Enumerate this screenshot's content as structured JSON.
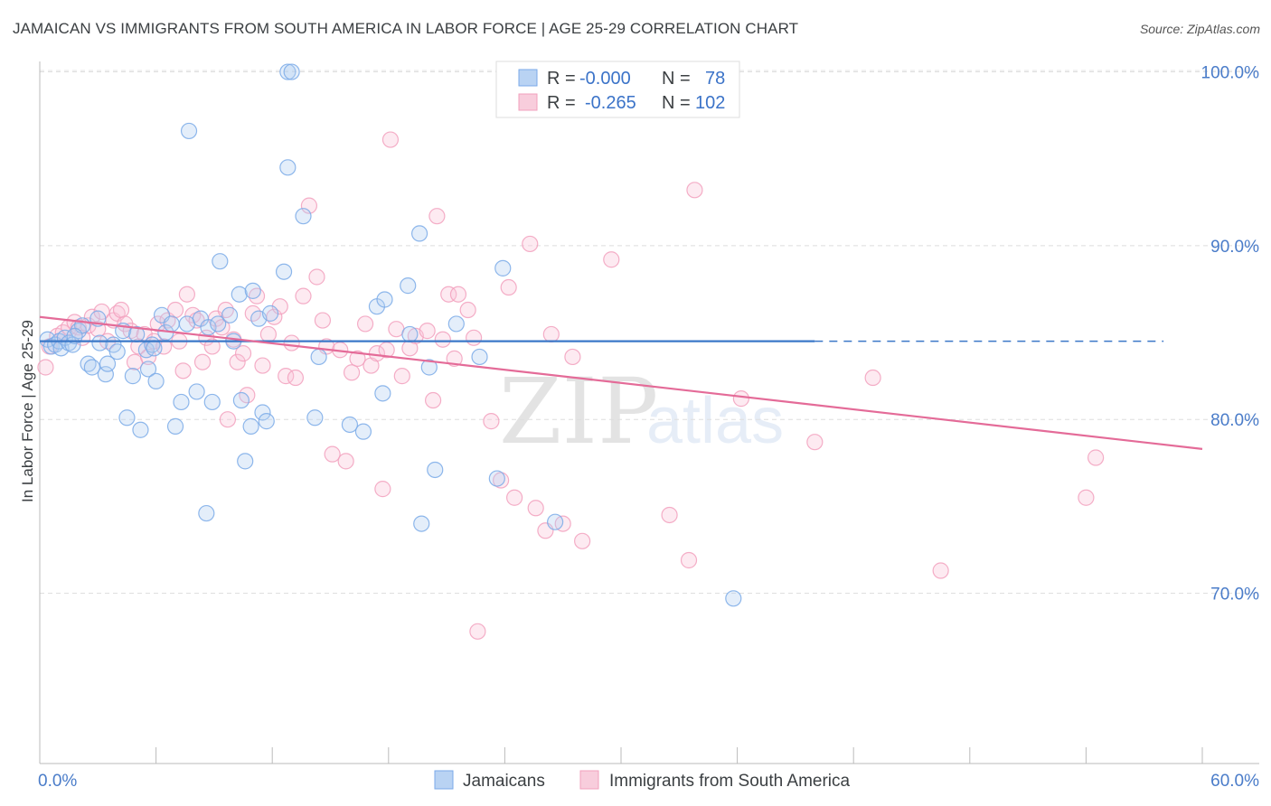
{
  "title": "JAMAICAN VS IMMIGRANTS FROM SOUTH AMERICA IN LABOR FORCE | AGE 25-29 CORRELATION CHART",
  "source": "Source: ZipAtlas.com",
  "watermark": {
    "zip": "ZIP",
    "atlas": "atlas"
  },
  "chart_data": {
    "type": "scatter",
    "title": "JAMAICAN VS IMMIGRANTS FROM SOUTH AMERICA IN LABOR FORCE | AGE 25-29 CORRELATION CHART",
    "xlabel": "",
    "ylabel": "In Labor Force | Age 25-29",
    "xlim": [
      0,
      60
    ],
    "ylim": [
      60.2,
      100.6
    ],
    "x_tick_labels": [
      "0.0%",
      "60.0%"
    ],
    "y_ticks": [
      70,
      80,
      90,
      100
    ],
    "y_tick_labels": [
      "70.0%",
      "80.0%",
      "90.0%",
      "100.0%"
    ],
    "grid": true,
    "legend": {
      "position": "top-center",
      "entries": [
        {
          "r_label": "R =",
          "r_value": "-0.000",
          "n_label": "N =",
          "n_value": "78"
        },
        {
          "r_label": "R =",
          "r_value": "-0.265",
          "n_label": "N =",
          "n_value": "102"
        }
      ]
    },
    "series": [
      {
        "name": "Jamaicans",
        "color": "#7aaae8",
        "line_color": "#3b78c8",
        "trend": {
          "x0": 0,
          "y0": 84.5,
          "x1": 40,
          "y1": 84.5,
          "dash_to": 58,
          "dash_y": 84.5
        },
        "points": [
          [
            0.4,
            84.6
          ],
          [
            0.6,
            84.2
          ],
          [
            0.8,
            84.3
          ],
          [
            1.0,
            84.5
          ],
          [
            1.1,
            84.1
          ],
          [
            1.3,
            84.7
          ],
          [
            1.5,
            84.4
          ],
          [
            1.7,
            84.3
          ],
          [
            2.0,
            85.1
          ],
          [
            2.2,
            85.4
          ],
          [
            2.5,
            83.2
          ],
          [
            2.7,
            83.0
          ],
          [
            3.0,
            85.8
          ],
          [
            3.1,
            84.4
          ],
          [
            3.4,
            82.6
          ],
          [
            3.5,
            83.2
          ],
          [
            3.8,
            84.3
          ],
          [
            4.0,
            83.9
          ],
          [
            4.3,
            85.1
          ],
          [
            4.5,
            80.1
          ],
          [
            4.8,
            82.5
          ],
          [
            5.0,
            84.9
          ],
          [
            5.2,
            79.4
          ],
          [
            5.5,
            84.0
          ],
          [
            5.6,
            82.9
          ],
          [
            5.8,
            84.3
          ],
          [
            6.0,
            82.2
          ],
          [
            6.3,
            86.0
          ],
          [
            6.5,
            85.0
          ],
          [
            6.8,
            85.5
          ],
          [
            7.0,
            79.6
          ],
          [
            7.3,
            81.0
          ],
          [
            7.6,
            85.5
          ],
          [
            7.7,
            96.6
          ],
          [
            8.1,
            81.6
          ],
          [
            8.3,
            85.8
          ],
          [
            8.6,
            74.6
          ],
          [
            8.7,
            85.3
          ],
          [
            8.9,
            81.0
          ],
          [
            9.2,
            85.5
          ],
          [
            9.3,
            89.1
          ],
          [
            9.8,
            86.0
          ],
          [
            10.0,
            84.5
          ],
          [
            10.3,
            87.2
          ],
          [
            10.4,
            81.1
          ],
          [
            10.6,
            77.6
          ],
          [
            10.9,
            79.6
          ],
          [
            11.0,
            87.4
          ],
          [
            11.3,
            85.8
          ],
          [
            11.5,
            80.4
          ],
          [
            11.7,
            79.9
          ],
          [
            11.9,
            86.1
          ],
          [
            12.6,
            88.5
          ],
          [
            12.8,
            94.5
          ],
          [
            12.8,
            100.0
          ],
          [
            13.0,
            100.0
          ],
          [
            13.6,
            91.7
          ],
          [
            14.2,
            80.1
          ],
          [
            14.4,
            83.6
          ],
          [
            16.0,
            79.7
          ],
          [
            16.7,
            79.3
          ],
          [
            17.4,
            86.5
          ],
          [
            17.7,
            81.5
          ],
          [
            17.8,
            86.9
          ],
          [
            19.0,
            87.7
          ],
          [
            19.1,
            84.9
          ],
          [
            19.6,
            90.7
          ],
          [
            19.7,
            74.0
          ],
          [
            20.1,
            83.0
          ],
          [
            20.4,
            77.1
          ],
          [
            21.5,
            85.5
          ],
          [
            22.7,
            83.6
          ],
          [
            23.6,
            76.6
          ],
          [
            23.9,
            88.7
          ],
          [
            26.6,
            74.1
          ],
          [
            35.8,
            69.7
          ],
          [
            5.9,
            84.1
          ],
          [
            1.8,
            84.8
          ]
        ]
      },
      {
        "name": "Immigrants from South America",
        "color": "#f2a0bd",
        "line_color": "#e46b98",
        "trend": {
          "x0": 0,
          "y0": 85.9,
          "x1": 60,
          "y1": 78.3
        },
        "points": [
          [
            0.3,
            83.0
          ],
          [
            0.5,
            84.2
          ],
          [
            0.9,
            84.8
          ],
          [
            1.2,
            85.0
          ],
          [
            1.5,
            85.3
          ],
          [
            1.8,
            85.6
          ],
          [
            2.0,
            85.3
          ],
          [
            2.2,
            84.7
          ],
          [
            2.5,
            85.4
          ],
          [
            2.7,
            85.9
          ],
          [
            3.0,
            85.2
          ],
          [
            3.2,
            86.2
          ],
          [
            3.5,
            84.5
          ],
          [
            3.8,
            85.7
          ],
          [
            4.0,
            86.1
          ],
          [
            4.2,
            86.3
          ],
          [
            4.4,
            85.5
          ],
          [
            4.7,
            85.1
          ],
          [
            4.9,
            83.3
          ],
          [
            5.1,
            84.2
          ],
          [
            5.4,
            84.9
          ],
          [
            5.6,
            83.6
          ],
          [
            5.9,
            84.5
          ],
          [
            6.1,
            85.5
          ],
          [
            6.4,
            84.2
          ],
          [
            6.6,
            85.7
          ],
          [
            7.0,
            86.3
          ],
          [
            7.2,
            84.5
          ],
          [
            7.4,
            82.8
          ],
          [
            7.6,
            87.2
          ],
          [
            7.9,
            86.0
          ],
          [
            8.1,
            85.7
          ],
          [
            8.4,
            83.3
          ],
          [
            8.6,
            84.7
          ],
          [
            8.9,
            84.2
          ],
          [
            9.1,
            85.8
          ],
          [
            9.4,
            85.3
          ],
          [
            9.7,
            80.0
          ],
          [
            10.0,
            84.6
          ],
          [
            10.2,
            83.3
          ],
          [
            10.5,
            83.8
          ],
          [
            10.7,
            81.4
          ],
          [
            11.0,
            86.1
          ],
          [
            11.2,
            87.1
          ],
          [
            11.5,
            83.1
          ],
          [
            11.8,
            84.9
          ],
          [
            12.1,
            85.9
          ],
          [
            12.4,
            86.5
          ],
          [
            12.7,
            82.5
          ],
          [
            13.0,
            84.4
          ],
          [
            13.2,
            82.4
          ],
          [
            13.6,
            87.1
          ],
          [
            13.9,
            92.3
          ],
          [
            14.3,
            88.2
          ],
          [
            14.6,
            85.7
          ],
          [
            14.8,
            84.2
          ],
          [
            15.1,
            78.0
          ],
          [
            15.5,
            84.0
          ],
          [
            15.8,
            77.6
          ],
          [
            16.1,
            82.7
          ],
          [
            16.4,
            83.5
          ],
          [
            16.8,
            85.5
          ],
          [
            17.1,
            83.1
          ],
          [
            17.4,
            83.8
          ],
          [
            17.7,
            76.0
          ],
          [
            17.9,
            84.0
          ],
          [
            18.1,
            96.1
          ],
          [
            18.4,
            85.2
          ],
          [
            18.7,
            82.5
          ],
          [
            19.1,
            84.1
          ],
          [
            19.4,
            84.8
          ],
          [
            20.0,
            85.1
          ],
          [
            20.3,
            81.1
          ],
          [
            20.5,
            91.7
          ],
          [
            20.8,
            84.6
          ],
          [
            21.1,
            87.2
          ],
          [
            21.4,
            83.5
          ],
          [
            21.6,
            87.2
          ],
          [
            22.1,
            86.3
          ],
          [
            22.4,
            84.7
          ],
          [
            22.6,
            67.8
          ],
          [
            23.3,
            79.9
          ],
          [
            23.8,
            76.5
          ],
          [
            24.2,
            87.6
          ],
          [
            24.5,
            75.5
          ],
          [
            25.3,
            90.1
          ],
          [
            25.6,
            74.9
          ],
          [
            26.1,
            73.6
          ],
          [
            26.4,
            84.9
          ],
          [
            27.0,
            74.0
          ],
          [
            27.5,
            83.6
          ],
          [
            28.0,
            73.0
          ],
          [
            29.5,
            89.2
          ],
          [
            32.5,
            74.5
          ],
          [
            33.5,
            71.9
          ],
          [
            33.8,
            93.2
          ],
          [
            36.2,
            81.2
          ],
          [
            40.0,
            78.7
          ],
          [
            43.0,
            82.4
          ],
          [
            46.5,
            71.3
          ],
          [
            54.0,
            75.5
          ],
          [
            54.5,
            77.8
          ],
          [
            9.6,
            86.3
          ]
        ]
      }
    ]
  },
  "bottom_legend": {
    "jamaicans": "Jamaicans",
    "immigrants": "Immigrants from South America"
  },
  "colors": {
    "blue": "#3b78c8",
    "pink": "#e46b98",
    "grid": "#dcdcdc"
  }
}
